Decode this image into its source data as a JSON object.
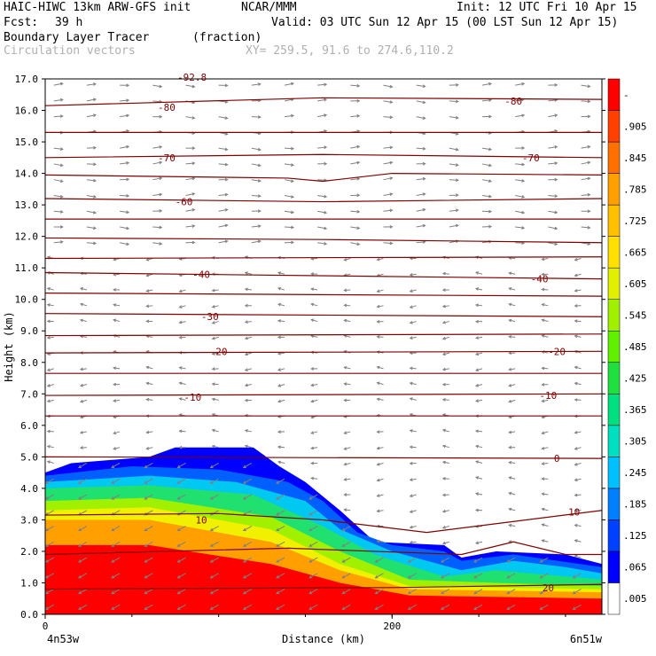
{
  "header": {
    "model": "HAIC-HIWC 13km ARW-GFS init",
    "org": "NCAR/MMM",
    "init": "Init: 12 UTC Fri 10 Apr 15",
    "fcst_label": "Fcst:",
    "fcst_value": "39 h",
    "valid": "Valid: 03 UTC Sun 12 Apr 15 (00 LST Sun 12 Apr 15)",
    "field": "Boundary Layer Tracer",
    "field_units": "(fraction)",
    "vectors": "Circulation vectors",
    "xy": "XY= 259.5, 91.6 to 274.6,110.2"
  },
  "chart_data": {
    "type": "area",
    "title": "Boundary Layer Tracer",
    "units": "(fraction)",
    "xlabel": "Distance (km)",
    "ylabel": "Height (km)",
    "xlim": [
      0,
      321
    ],
    "ylim": [
      0,
      17
    ],
    "x_ticks": [
      {
        "value": 0,
        "label": "0"
      },
      {
        "value": 200,
        "label": "200"
      }
    ],
    "x_endpoints": {
      "left": "4n53w",
      "right": "6n51w"
    },
    "y_ticks": [
      "0.0",
      "1.0",
      "2.0",
      "3.0",
      "4.0",
      "5.0",
      "6.0",
      "7.0",
      "8.0",
      "9.0",
      "10.0",
      "11.0",
      "12.0",
      "13.0",
      "14.0",
      "15.0",
      "16.0",
      "17.0"
    ],
    "colorbar": {
      "labels": [
        ".005",
        ".065",
        ".125",
        ".185",
        ".245",
        ".305",
        ".365",
        ".425",
        ".485",
        ".545",
        ".605",
        ".665",
        ".725",
        ".785",
        ".845",
        ".905",
        "-"
      ],
      "colors": [
        "#ffffff",
        "#0000ff",
        "#0040ff",
        "#0080ff",
        "#00c0ff",
        "#00e0c0",
        "#00e080",
        "#20e040",
        "#60f000",
        "#a0f000",
        "#e0f000",
        "#ffe000",
        "#ffc000",
        "#ffa000",
        "#ff7000",
        "#ff4000",
        "#ff0000"
      ]
    },
    "tracer_envelopes": [
      {
        "level": 0.005,
        "color": "#0000ff",
        "top": [
          [
            0,
            4.5
          ],
          [
            15,
            4.8
          ],
          [
            60,
            5.0
          ],
          [
            75,
            5.3
          ],
          [
            120,
            5.3
          ],
          [
            135,
            4.7
          ],
          [
            150,
            4.2
          ],
          [
            170,
            3.3
          ],
          [
            190,
            2.3
          ],
          [
            230,
            2.2
          ],
          [
            240,
            1.8
          ],
          [
            260,
            2.0
          ],
          [
            300,
            1.9
          ],
          [
            321,
            1.6
          ]
        ]
      },
      {
        "level": 0.065,
        "color": "#0060ff",
        "top": [
          [
            0,
            4.4
          ],
          [
            50,
            4.7
          ],
          [
            100,
            4.6
          ],
          [
            140,
            4.2
          ],
          [
            160,
            3.6
          ],
          [
            180,
            2.6
          ],
          [
            200,
            2.2
          ],
          [
            230,
            2.0
          ],
          [
            240,
            1.7
          ],
          [
            270,
            1.9
          ],
          [
            321,
            1.5
          ]
        ]
      },
      {
        "level": 0.185,
        "color": "#00c8f0",
        "top": [
          [
            0,
            4.2
          ],
          [
            60,
            4.4
          ],
          [
            110,
            4.2
          ],
          [
            150,
            3.6
          ],
          [
            170,
            2.7
          ],
          [
            200,
            2.0
          ],
          [
            240,
            1.4
          ],
          [
            270,
            1.7
          ],
          [
            300,
            1.5
          ],
          [
            321,
            1.3
          ]
        ]
      },
      {
        "level": 0.305,
        "color": "#20e070",
        "top": [
          [
            0,
            4.0
          ],
          [
            60,
            4.1
          ],
          [
            120,
            3.8
          ],
          [
            160,
            2.8
          ],
          [
            190,
            1.9
          ],
          [
            230,
            1.2
          ],
          [
            260,
            1.4
          ],
          [
            321,
            1.1
          ]
        ]
      },
      {
        "level": 0.485,
        "color": "#a0f000",
        "top": [
          [
            0,
            3.6
          ],
          [
            60,
            3.7
          ],
          [
            130,
            3.1
          ],
          [
            170,
            2.0
          ],
          [
            210,
            1.1
          ],
          [
            260,
            1.0
          ],
          [
            321,
            0.9
          ]
        ]
      },
      {
        "level": 0.605,
        "color": "#f0f000",
        "top": [
          [
            0,
            3.3
          ],
          [
            60,
            3.4
          ],
          [
            130,
            2.7
          ],
          [
            170,
            1.6
          ],
          [
            210,
            0.9
          ],
          [
            321,
            0.8
          ]
        ]
      },
      {
        "level": 0.785,
        "color": "#ffa000",
        "top": [
          [
            0,
            3.0
          ],
          [
            60,
            3.0
          ],
          [
            130,
            2.3
          ],
          [
            170,
            1.4
          ],
          [
            210,
            0.8
          ],
          [
            321,
            0.7
          ]
        ]
      },
      {
        "level": 0.905,
        "color": "#ff0000",
        "top": [
          [
            0,
            2.2
          ],
          [
            60,
            2.2
          ],
          [
            130,
            1.6
          ],
          [
            170,
            1.0
          ],
          [
            210,
            0.6
          ],
          [
            321,
            0.5
          ]
        ]
      }
    ],
    "temperature_contours": [
      {
        "label": "-80",
        "points": [
          [
            0,
            16.15
          ],
          [
            160,
            16.4
          ],
          [
            321,
            16.35
          ]
        ],
        "label_at": [
          [
            70,
            16.1
          ],
          [
            270,
            16.3
          ]
        ]
      },
      {
        "label": "",
        "points": [
          [
            0,
            15.3
          ],
          [
            321,
            15.3
          ]
        ],
        "label_at": []
      },
      {
        "label": "-70",
        "points": [
          [
            0,
            14.5
          ],
          [
            160,
            14.6
          ],
          [
            321,
            14.5
          ]
        ],
        "label_at": [
          [
            70,
            14.5
          ],
          [
            280,
            14.5
          ]
        ]
      },
      {
        "label": "",
        "points": [
          [
            0,
            13.95
          ],
          [
            140,
            13.85
          ],
          [
            160,
            13.75
          ],
          [
            200,
            14.0
          ],
          [
            321,
            13.95
          ]
        ],
        "label_at": []
      },
      {
        "label": "-60",
        "points": [
          [
            0,
            13.2
          ],
          [
            160,
            13.1
          ],
          [
            321,
            13.2
          ]
        ],
        "label_at": [
          [
            80,
            13.1
          ]
        ]
      },
      {
        "label": "",
        "points": [
          [
            0,
            12.55
          ],
          [
            321,
            12.55
          ]
        ],
        "label_at": []
      },
      {
        "label": "",
        "points": [
          [
            0,
            11.95
          ],
          [
            160,
            11.9
          ],
          [
            321,
            11.8
          ]
        ],
        "label_at": []
      },
      {
        "label": "",
        "points": [
          [
            0,
            11.3
          ],
          [
            321,
            11.35
          ]
        ],
        "label_at": []
      },
      {
        "label": "-40",
        "points": [
          [
            0,
            10.85
          ],
          [
            321,
            10.65
          ]
        ],
        "label_at": [
          [
            90,
            10.8
          ],
          [
            285,
            10.65
          ]
        ]
      },
      {
        "label": "",
        "points": [
          [
            0,
            10.2
          ],
          [
            321,
            10.1
          ]
        ],
        "label_at": []
      },
      {
        "label": "-30",
        "points": [
          [
            0,
            9.55
          ],
          [
            321,
            9.45
          ]
        ],
        "label_at": [
          [
            95,
            9.45
          ]
        ]
      },
      {
        "label": "",
        "points": [
          [
            0,
            8.85
          ],
          [
            321,
            8.9
          ]
        ],
        "label_at": []
      },
      {
        "label": "-20",
        "points": [
          [
            0,
            8.3
          ],
          [
            321,
            8.35
          ]
        ],
        "label_at": [
          [
            100,
            8.35
          ],
          [
            295,
            8.35
          ]
        ]
      },
      {
        "label": "",
        "points": [
          [
            0,
            7.65
          ],
          [
            321,
            7.65
          ]
        ],
        "label_at": []
      },
      {
        "label": "-10",
        "points": [
          [
            0,
            6.95
          ],
          [
            321,
            7.0
          ]
        ],
        "label_at": [
          [
            85,
            6.9
          ],
          [
            290,
            6.95
          ]
        ]
      },
      {
        "label": "",
        "points": [
          [
            0,
            6.3
          ],
          [
            321,
            6.3
          ]
        ],
        "label_at": []
      },
      {
        "label": "0",
        "points": [
          [
            0,
            5.0
          ],
          [
            321,
            4.95
          ]
        ],
        "label_at": [
          [
            295,
            4.95
          ]
        ]
      },
      {
        "label": "10",
        "points": [
          [
            0,
            3.15
          ],
          [
            100,
            3.2
          ],
          [
            160,
            3.0
          ],
          [
            220,
            2.6
          ],
          [
            321,
            3.3
          ]
        ],
        "label_at": [
          [
            90,
            3.0
          ],
          [
            305,
            3.25
          ]
        ]
      },
      {
        "label": "",
        "points": [
          [
            0,
            1.9
          ],
          [
            140,
            2.1
          ],
          [
            240,
            1.9
          ],
          [
            270,
            2.3
          ],
          [
            300,
            1.9
          ],
          [
            321,
            1.9
          ]
        ],
        "label_at": []
      },
      {
        "label": "20",
        "points": [
          [
            0,
            0.8
          ],
          [
            200,
            0.85
          ],
          [
            321,
            0.95
          ]
        ],
        "label_at": [
          [
            290,
            0.85
          ]
        ]
      }
    ],
    "top_partial_label": "-92.8",
    "grid": false
  }
}
